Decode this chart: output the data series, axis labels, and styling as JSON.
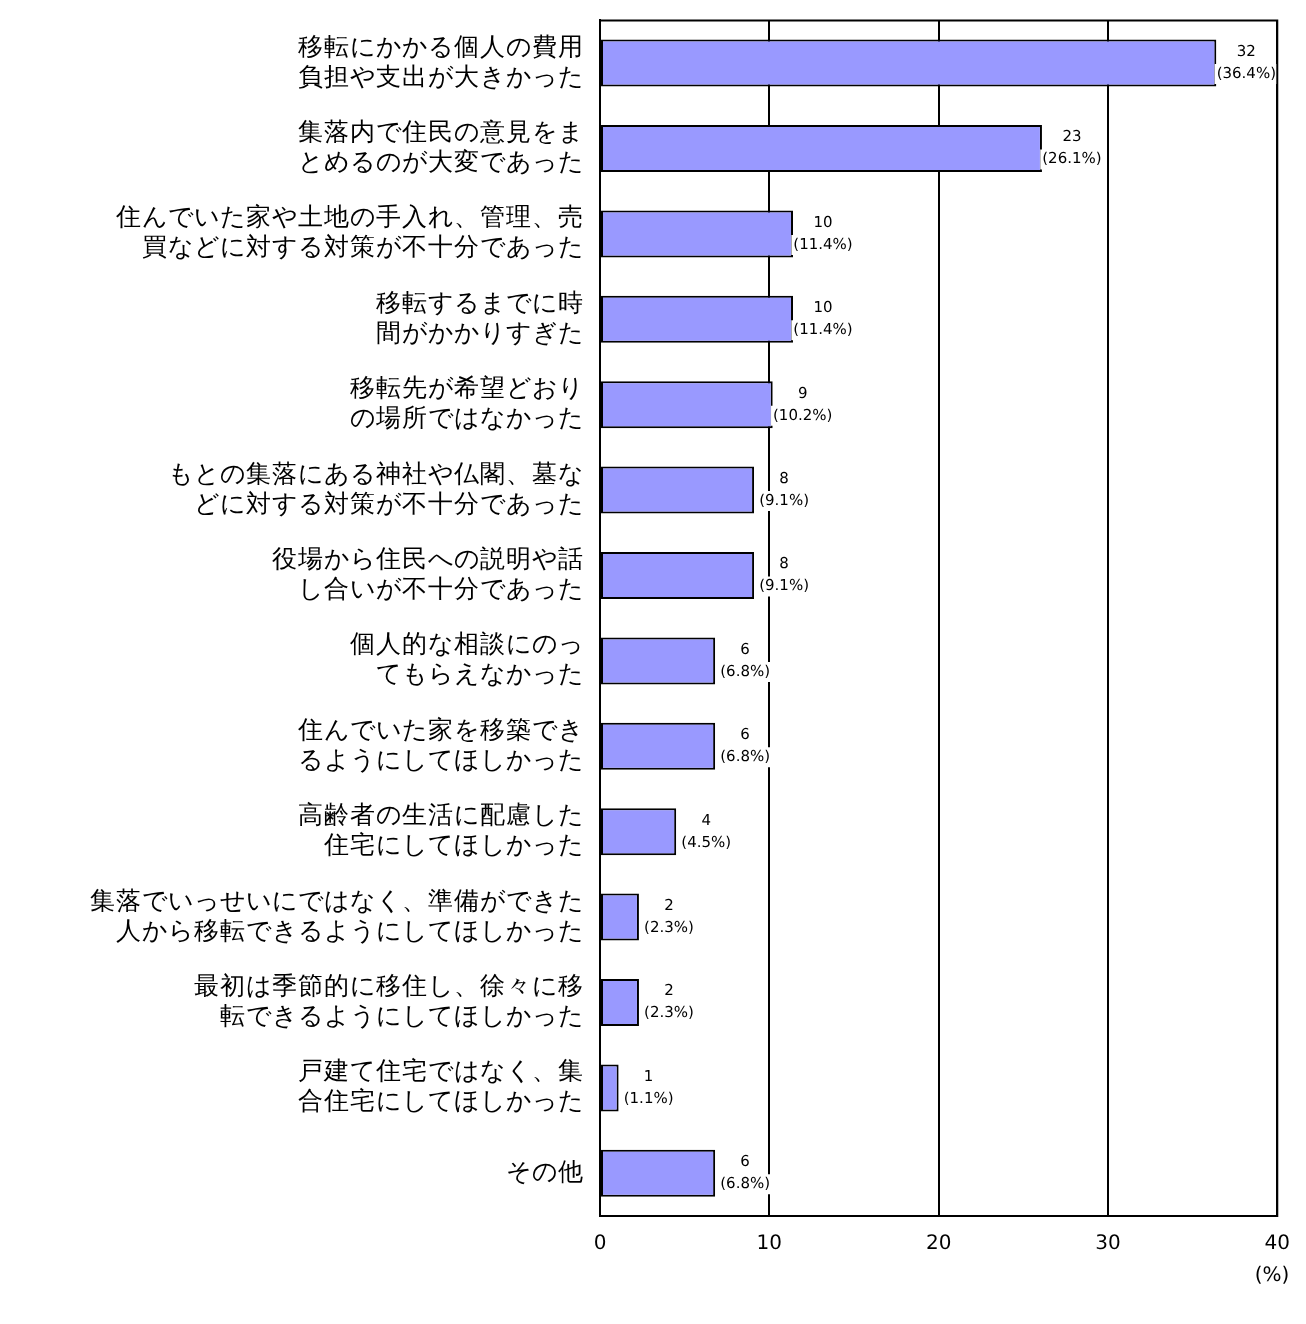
{
  "chart_data": {
    "type": "bar",
    "orientation": "horizontal",
    "xlabel": "(%)",
    "categories": [
      "移転にかかる個人の費用負担や支出が大きかった",
      "集落内で住民の意見をまとめるのが大変であった",
      "住んでいた家や土地の手入れ、管理、売買などに対する対策が不十分であった",
      "移転するまでに時間がかかりすぎた",
      "移転先が希望どおりの場所ではなかった",
      "もとの集落にある神社や仏閣、墓などに対する対策が不十分であった",
      "役場から住民への説明や話し合いが不十分であった",
      "個人的な相談にのってもらえなかった",
      "住んでいた家を移築できるようにしてほしかった",
      "高齢者の生活に配慮した住宅にしてほしかった",
      "集落でいっせいにではなく、準備ができた人から移転できるようにしてほしかった",
      "最初は季節的に移住し、徐々に移転できるようにしてほしかった",
      "戸建て住宅ではなく、集合住宅にしてほしかった",
      "その他"
    ],
    "values": [
      36.4,
      26.1,
      11.4,
      11.4,
      10.2,
      9.1,
      9.1,
      6.8,
      6.8,
      4.5,
      2.3,
      2.3,
      1.1,
      6.8
    ],
    "value_labels": [
      "32\n(36.4%)",
      "23\n(26.1%)",
      "10\n(11.4%)",
      "10\n(11.4%)",
      "9\n(10.2%)",
      "8\n(9.1%)",
      "8\n(9.1%)",
      "6\n(6.8%)",
      "6\n(6.8%)",
      "4\n(4.5%)",
      "2\n(2.3%)",
      "2\n(2.3%)",
      "1\n(1.1%)",
      "6\n(6.8%)"
    ],
    "color": "#9999ff",
    "xlim": [
      0,
      40
    ],
    "xticks": [
      0,
      10,
      20,
      30,
      40
    ],
    "grid": "x",
    "legend": false
  }
}
